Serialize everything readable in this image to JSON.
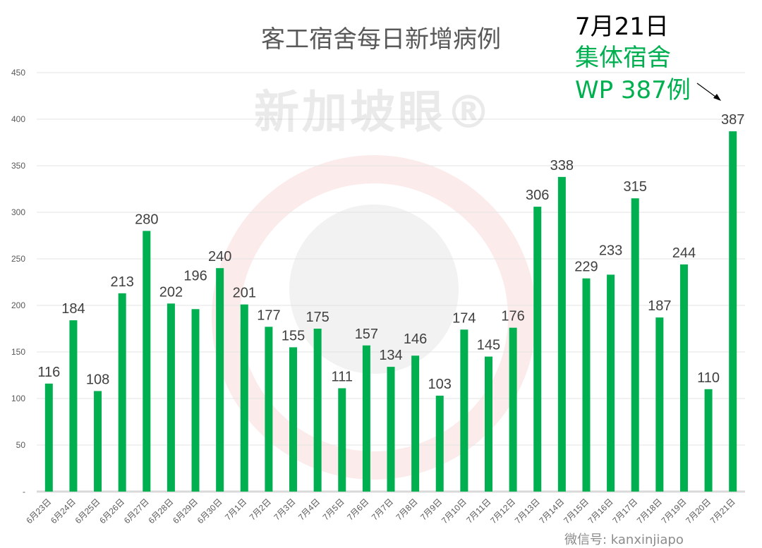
{
  "chart_data": {
    "type": "bar",
    "title": "客工宿舍每日新增病例",
    "categories": [
      "6月23日",
      "6月24日",
      "6月25日",
      "6月26日",
      "6月27日",
      "6月28日",
      "6月29日",
      "6月30日",
      "7月1日",
      "7月2日",
      "7月3日",
      "7月4日",
      "7月5日",
      "7月6日",
      "7月7日",
      "7月8日",
      "7月9日",
      "7月10日",
      "7月11日",
      "7月12日",
      "7月13日",
      "7月14日",
      "7月15日",
      "7月16日",
      "7月17日",
      "7月18日",
      "7月19日",
      "7月20日",
      "7月21日"
    ],
    "values": [
      116,
      184,
      108,
      213,
      280,
      202,
      196,
      240,
      201,
      177,
      155,
      175,
      111,
      157,
      134,
      146,
      103,
      174,
      145,
      176,
      306,
      338,
      229,
      233,
      315,
      187,
      244,
      110,
      387
    ],
    "ylim": [
      0,
      450
    ],
    "yticks": [
      0,
      50,
      100,
      150,
      200,
      250,
      300,
      350,
      400,
      450
    ],
    "ytick_labels": [
      "-",
      "50",
      "100",
      "150",
      "200",
      "250",
      "300",
      "350",
      "400",
      "450"
    ],
    "grid": true,
    "bar_color": "#00b050",
    "annotation": {
      "line1": "7月21日",
      "line2": "集体宿舍",
      "line3": "WP 387例",
      "color_line1": "#000000",
      "color_rest": "#00b050"
    }
  },
  "watermark": {
    "logo": "新加坡眼®",
    "wechat": "微信号: kanxinjiapo"
  }
}
